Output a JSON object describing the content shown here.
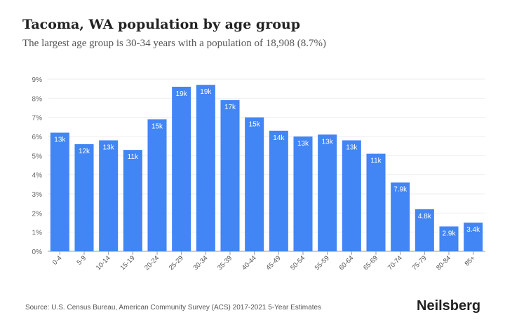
{
  "title": "Tacoma, WA population by age group",
  "subtitle": "The largest age group is 30-34 years with a population of 18,908 (8.7%)",
  "source": "Source: U.S. Census Bureau, American Community Survey (ACS) 2017-2021 5-Year Estimates",
  "logo": "Neilsberg",
  "colors": {
    "bar": "#4285f4",
    "grid": "#eeeeee",
    "label": "#ffffff"
  },
  "chart_data": {
    "type": "bar",
    "categories": [
      "0-4",
      "5-9",
      "10-14",
      "15-19",
      "20-24",
      "25-29",
      "30-34",
      "35-39",
      "40-44",
      "45-49",
      "50-54",
      "55-59",
      "60-64",
      "65-69",
      "70-74",
      "75-79",
      "80-84",
      "85+"
    ],
    "values": [
      6.2,
      5.6,
      5.8,
      5.3,
      6.9,
      8.6,
      8.7,
      7.9,
      7.0,
      6.3,
      6.0,
      6.1,
      5.8,
      5.1,
      3.6,
      2.2,
      1.3,
      1.5
    ],
    "data_labels": [
      "13k",
      "12k",
      "13k",
      "11k",
      "15k",
      "19k",
      "19k",
      "17k",
      "15k",
      "14k",
      "13k",
      "13k",
      "13k",
      "11k",
      "7.9k",
      "4.8k",
      "2.9k",
      "3.4k"
    ],
    "ylim": [
      0,
      9
    ],
    "yticks": [
      "0%",
      "1%",
      "2%",
      "3%",
      "4%",
      "5%",
      "6%",
      "7%",
      "8%",
      "9%"
    ],
    "grid": true,
    "xlabel": "",
    "ylabel": ""
  }
}
